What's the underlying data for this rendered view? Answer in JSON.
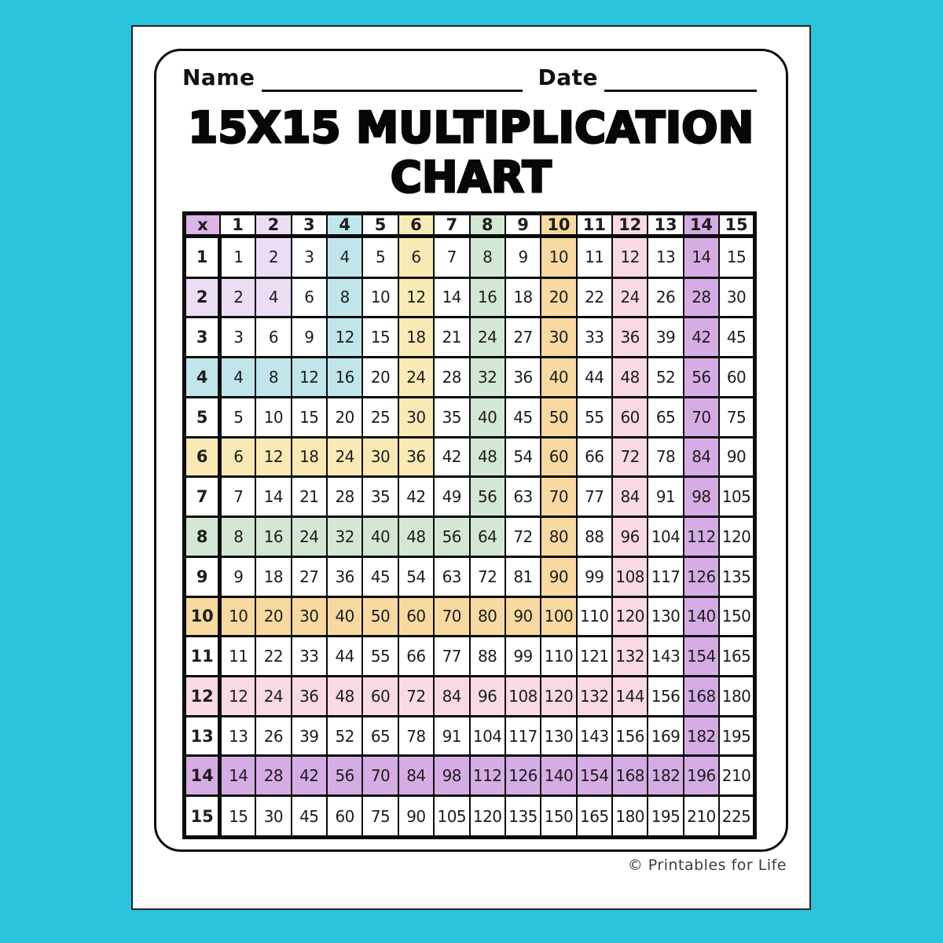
{
  "header": {
    "name_label": "Name",
    "date_label": "Date"
  },
  "title": {
    "line1": "15X15 MULTIPLICATION",
    "line2": "CHART"
  },
  "footer": {
    "copyright": "© Printables for Life"
  },
  "colors": {
    "background": "#29c3db",
    "page": "#ffffff",
    "table_border": "#0c0c0c",
    "text": "#1d1d1d"
  },
  "highlight_colors": {
    "corner": "#dcb4e6",
    "2": "#ecdcf4",
    "4": "#c0e6ec",
    "6": "#f9eab5",
    "8": "#d3e8d4",
    "10": "#f7d9a1",
    "12": "#f9d9e4",
    "14": "#d6ace4"
  },
  "table": {
    "corner_label": "x",
    "column_headers": [
      "1",
      "2",
      "3",
      "4",
      "5",
      "6",
      "7",
      "8",
      "9",
      "10",
      "11",
      "12",
      "13",
      "14",
      "15"
    ],
    "rows": [
      {
        "header": "1",
        "values": [
          1,
          2,
          3,
          4,
          5,
          6,
          7,
          8,
          9,
          10,
          11,
          12,
          13,
          14,
          15
        ]
      },
      {
        "header": "2",
        "values": [
          2,
          4,
          6,
          8,
          10,
          12,
          14,
          16,
          18,
          20,
          22,
          24,
          26,
          28,
          30
        ]
      },
      {
        "header": "3",
        "values": [
          3,
          6,
          9,
          12,
          15,
          18,
          21,
          24,
          27,
          30,
          33,
          36,
          39,
          42,
          45
        ]
      },
      {
        "header": "4",
        "values": [
          4,
          8,
          12,
          16,
          20,
          24,
          28,
          32,
          36,
          40,
          44,
          48,
          52,
          56,
          60
        ]
      },
      {
        "header": "5",
        "values": [
          5,
          10,
          15,
          20,
          25,
          30,
          35,
          40,
          45,
          50,
          55,
          60,
          65,
          70,
          75
        ]
      },
      {
        "header": "6",
        "values": [
          6,
          12,
          18,
          24,
          30,
          36,
          42,
          48,
          54,
          60,
          66,
          72,
          78,
          84,
          90
        ]
      },
      {
        "header": "7",
        "values": [
          7,
          14,
          21,
          28,
          35,
          42,
          49,
          56,
          63,
          70,
          77,
          84,
          91,
          98,
          105
        ]
      },
      {
        "header": "8",
        "values": [
          8,
          16,
          24,
          32,
          40,
          48,
          56,
          64,
          72,
          80,
          88,
          96,
          104,
          112,
          120
        ]
      },
      {
        "header": "9",
        "values": [
          9,
          18,
          27,
          36,
          45,
          54,
          63,
          72,
          81,
          90,
          99,
          108,
          117,
          126,
          135
        ]
      },
      {
        "header": "10",
        "values": [
          10,
          20,
          30,
          40,
          50,
          60,
          70,
          80,
          90,
          100,
          110,
          120,
          130,
          140,
          150
        ]
      },
      {
        "header": "11",
        "values": [
          11,
          22,
          33,
          44,
          55,
          66,
          77,
          88,
          99,
          110,
          121,
          132,
          143,
          154,
          165
        ]
      },
      {
        "header": "12",
        "values": [
          12,
          24,
          36,
          48,
          60,
          72,
          84,
          96,
          108,
          120,
          132,
          144,
          156,
          168,
          180
        ]
      },
      {
        "header": "13",
        "values": [
          13,
          26,
          39,
          52,
          65,
          78,
          91,
          104,
          117,
          130,
          143,
          156,
          169,
          182,
          195
        ]
      },
      {
        "header": "14",
        "values": [
          14,
          28,
          42,
          56,
          70,
          84,
          98,
          112,
          126,
          140,
          154,
          168,
          182,
          196,
          210
        ]
      },
      {
        "header": "15",
        "values": [
          15,
          30,
          45,
          60,
          75,
          90,
          105,
          120,
          135,
          150,
          165,
          180,
          195,
          210,
          225
        ]
      }
    ]
  }
}
